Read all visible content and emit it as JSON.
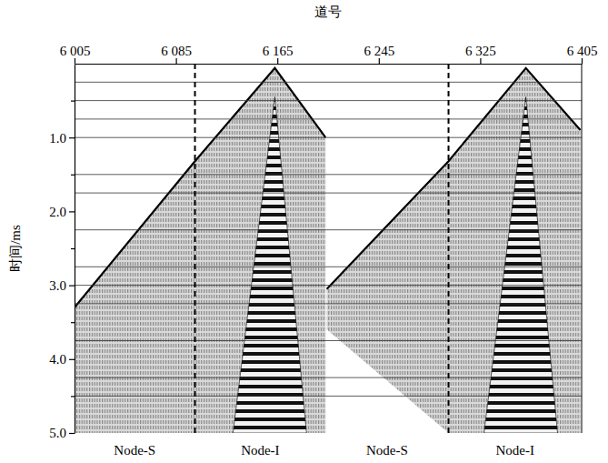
{
  "chart_data": {
    "type": "seismic",
    "x_label": "道号",
    "y_label": "时间/ms",
    "xlim": [
      6005,
      6405
    ],
    "xticks": [
      {
        "value": 6005,
        "label": "6 005"
      },
      {
        "value": 6085,
        "label": "6 085"
      },
      {
        "value": 6165,
        "label": "6 165"
      },
      {
        "value": 6245,
        "label": "6 245"
      },
      {
        "value": 6325,
        "label": "6 325"
      },
      {
        "value": 6405,
        "label": "6 405"
      }
    ],
    "ylim": [
      0,
      5
    ],
    "yticks": [
      {
        "value": 1,
        "label": "1.0"
      },
      {
        "value": 2,
        "label": "2.0"
      },
      {
        "value": 3,
        "label": "3.0"
      },
      {
        "value": 4,
        "label": "4.0"
      },
      {
        "value": 5,
        "label": "5.0"
      }
    ],
    "minor_yticks": [
      0.5,
      1.5,
      2.5,
      3.5,
      4.5
    ],
    "horizontal_lines": [
      0.25,
      0.5,
      0.75,
      1.0,
      1.5,
      1.75,
      2.25,
      2.75,
      3.0,
      3.25,
      3.75,
      4.25,
      4.5
    ],
    "dividers": [
      6100,
      6300
    ],
    "sections": [
      {
        "label": "Node-S",
        "start": 6005,
        "end": 6100
      },
      {
        "label": "Node-I",
        "start": 6100,
        "end": 6203
      },
      {
        "label": "Node-S",
        "start": 6203,
        "end": 6300
      },
      {
        "label": "Node-I",
        "start": 6300,
        "end": 6405
      }
    ],
    "series": [
      {
        "type": "area",
        "x": [
          6005,
          6100,
          6100,
          6005
        ],
        "values": [
          3.3,
          1.32,
          5.0,
          5.0
        ]
      },
      {
        "type": "area",
        "x": [
          6100,
          6163,
          6203,
          6203,
          6100
        ],
        "values": [
          1.32,
          0.06,
          1.0,
          5.0,
          5.0
        ]
      },
      {
        "type": "area",
        "x": [
          6204,
          6300,
          6300,
          6204
        ],
        "values": [
          3.05,
          1.32,
          5.0,
          3.6
        ]
      },
      {
        "type": "area",
        "x": [
          6300,
          6361,
          6404,
          6404,
          6300
        ],
        "values": [
          1.32,
          0.06,
          0.9,
          5.0,
          5.0
        ]
      },
      {
        "type": "band",
        "x": [
          6163,
          6188,
          6130
        ],
        "values": [
          0.45,
          5.0,
          5.0
        ]
      },
      {
        "type": "band",
        "x": [
          6361,
          6386,
          6328
        ],
        "values": [
          0.45,
          5.0,
          5.0
        ]
      },
      {
        "type": "line",
        "x": [
          6005,
          6100,
          6163,
          6203
        ],
        "values": [
          3.3,
          1.32,
          0.06,
          1.0
        ]
      },
      {
        "type": "line",
        "x": [
          6204,
          6300,
          6361,
          6404
        ],
        "values": [
          3.05,
          1.32,
          0.06,
          0.9
        ]
      }
    ]
  }
}
